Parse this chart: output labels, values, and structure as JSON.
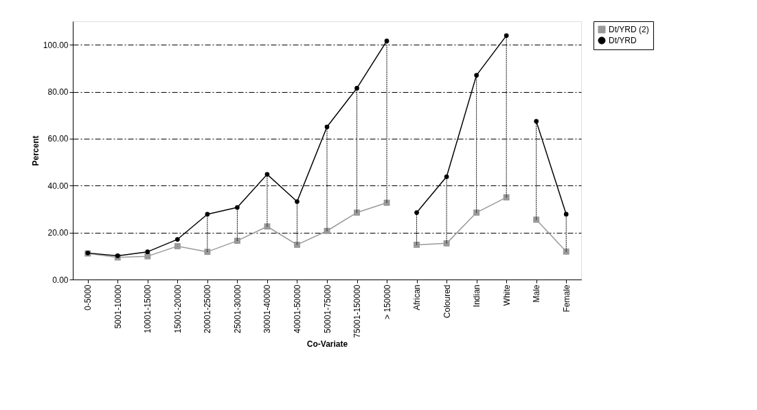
{
  "chart_data": {
    "type": "line",
    "xlabel": "Co-Variate",
    "ylabel": "Percent",
    "categories": [
      "0-5000",
      "5001-10000",
      "10001-15000",
      "15001-20000",
      "20001-25000",
      "25001-30000",
      "30001-40000",
      "40001-50000",
      "50001-75000",
      "75001-150000",
      "> 150000",
      "African",
      "Coloured",
      "Indian",
      "White",
      "Male",
      "Female"
    ],
    "series": [
      {
        "name": "Dt/YRD (2)",
        "color": "#999999",
        "marker": "square",
        "x": [
          "0-5000",
          "5001-10000",
          "10001-15000",
          "15001-20000",
          "20001-25000",
          "25001-30000",
          "30001-40000",
          "40001-50000",
          "50001-75000",
          "75001-150000",
          "> 150000"
        ],
        "values": [
          11.1,
          9.4,
          9.9,
          14.2,
          11.8,
          16.5,
          22.6,
          14.8,
          20.7,
          28.5,
          32.7
        ]
      },
      {
        "color": "#999999",
        "marker": "square",
        "x": [
          "African",
          "Coloured",
          "Indian",
          "White"
        ],
        "values": [
          14.8,
          15.4,
          28.5,
          35.0
        ]
      },
      {
        "color": "#999999",
        "marker": "square",
        "x": [
          "Male",
          "Female"
        ],
        "values": [
          25.5,
          11.9
        ]
      },
      {
        "name": "Dt/YRD",
        "color": "#000000",
        "marker": "circle",
        "x": [
          "0-5000",
          "5001-10000",
          "10001-15000",
          "15001-20000",
          "20001-25000",
          "25001-30000",
          "30001-40000",
          "40001-50000",
          "50001-75000",
          "75001-150000",
          "> 150000"
        ],
        "values": [
          11.3,
          10.1,
          11.8,
          17.1,
          27.8,
          30.7,
          44.8,
          33.2,
          65.0,
          81.5,
          101.6
        ],
        "errors": [
          null,
          null,
          null,
          null,
          [
            11.8,
            27.8
          ],
          [
            16.5,
            30.7
          ],
          [
            22.6,
            44.8
          ],
          [
            14.8,
            33.2
          ],
          [
            20.7,
            65.0
          ],
          [
            28.5,
            81.5
          ],
          [
            32.7,
            101.6
          ]
        ]
      },
      {
        "color": "#000000",
        "marker": "circle",
        "x": [
          "African",
          "Coloured",
          "Indian",
          "White"
        ],
        "values": [
          28.5,
          43.8,
          87.0,
          103.9
        ],
        "errors": [
          [
            14.8,
            28.5
          ],
          [
            15.4,
            43.8
          ],
          [
            28.5,
            87.0
          ],
          [
            35.0,
            103.9
          ]
        ]
      },
      {
        "color": "#000000",
        "marker": "circle",
        "x": [
          "Male",
          "Female"
        ],
        "values": [
          67.4,
          27.8
        ],
        "errors": [
          [
            25.5,
            67.4
          ],
          [
            11.9,
            27.8
          ]
        ]
      }
    ],
    "ylim": [
      0,
      110
    ],
    "yticks": [
      {
        "value": 0,
        "label": "0.00"
      },
      {
        "value": 20,
        "label": "20.00"
      },
      {
        "value": 40,
        "label": "40.00"
      },
      {
        "value": 60,
        "label": "60.00"
      },
      {
        "value": 80,
        "label": "80.00"
      },
      {
        "value": 100,
        "label": "100.00"
      }
    ],
    "grid": "y",
    "legend": "right",
    "line_style": "solid"
  }
}
